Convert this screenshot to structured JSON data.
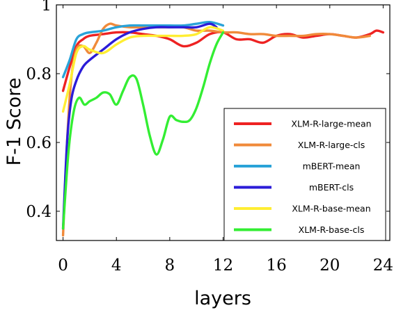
{
  "chart_data": {
    "type": "line",
    "title": "",
    "xlabel": "layers",
    "ylabel": "F-1 Score",
    "xlim": [
      -0.5,
      24.5
    ],
    "ylim": [
      0.315,
      1.0
    ],
    "xticks": [
      0,
      4,
      8,
      12,
      16,
      20,
      24
    ],
    "yticks": [
      0.4,
      0.6,
      0.8,
      1
    ],
    "ytick_labels": [
      "0.4",
      "0.6",
      "0.8",
      "1"
    ],
    "grid": false,
    "legend_position": "bottom-right",
    "series": [
      {
        "name": "XLM-R-large-mean",
        "color": "#ee2222",
        "x": [
          0,
          0.5,
          1,
          1.5,
          2,
          3,
          4,
          5,
          6,
          7,
          8,
          9,
          10,
          11,
          12,
          13,
          14,
          15,
          16,
          17,
          18,
          19,
          20,
          21,
          22,
          23,
          23.5,
          24
        ],
        "y": [
          0.75,
          0.82,
          0.88,
          0.9,
          0.91,
          0.915,
          0.92,
          0.92,
          0.915,
          0.91,
          0.9,
          0.88,
          0.89,
          0.915,
          0.92,
          0.9,
          0.9,
          0.89,
          0.91,
          0.915,
          0.905,
          0.91,
          0.915,
          0.91,
          0.905,
          0.915,
          0.925,
          0.92
        ]
      },
      {
        "name": "XLM-R-large-cls",
        "color": "#f08a3a",
        "x": [
          0,
          0.3,
          0.6,
          1,
          1.5,
          2,
          2.5,
          3,
          3.5,
          4,
          5,
          6,
          7,
          8,
          9,
          10,
          11,
          12,
          13,
          14,
          15,
          16,
          17,
          18,
          19,
          20,
          21,
          22,
          23
        ],
        "y": [
          0.33,
          0.6,
          0.78,
          0.87,
          0.88,
          0.86,
          0.89,
          0.93,
          0.945,
          0.94,
          0.935,
          0.935,
          0.935,
          0.935,
          0.935,
          0.925,
          0.925,
          0.92,
          0.92,
          0.915,
          0.915,
          0.91,
          0.91,
          0.91,
          0.915,
          0.915,
          0.91,
          0.905,
          0.91
        ]
      },
      {
        "name": "mBERT-mean",
        "color": "#2aa3d8",
        "x": [
          0,
          0.5,
          1,
          1.5,
          2,
          3,
          4,
          5,
          6,
          7,
          8,
          9,
          10,
          11,
          12
        ],
        "y": [
          0.79,
          0.84,
          0.9,
          0.915,
          0.92,
          0.925,
          0.935,
          0.94,
          0.94,
          0.94,
          0.94,
          0.94,
          0.945,
          0.95,
          0.94
        ]
      },
      {
        "name": "mBERT-cls",
        "color": "#2b1cd8",
        "x": [
          0,
          0.3,
          0.6,
          1,
          1.5,
          2,
          3,
          4,
          5,
          6,
          7,
          8,
          9,
          10,
          11,
          11.5
        ],
        "y": [
          0.35,
          0.6,
          0.72,
          0.78,
          0.82,
          0.84,
          0.87,
          0.9,
          0.92,
          0.93,
          0.935,
          0.935,
          0.935,
          0.935,
          0.945,
          0.935
        ]
      },
      {
        "name": "XLM-R-base-mean",
        "color": "#ffee33",
        "x": [
          0,
          0.5,
          1,
          1.5,
          2,
          3,
          4,
          5,
          6,
          7,
          8,
          9,
          10,
          11,
          12
        ],
        "y": [
          0.69,
          0.77,
          0.86,
          0.88,
          0.87,
          0.86,
          0.885,
          0.905,
          0.91,
          0.91,
          0.91,
          0.91,
          0.915,
          0.935,
          0.925
        ]
      },
      {
        "name": "XLM-R-base-cls",
        "color": "#33ee33",
        "x": [
          0,
          0.4,
          0.8,
          1.2,
          1.6,
          2,
          2.5,
          3,
          3.5,
          4,
          4.5,
          5,
          5.5,
          6,
          6.5,
          7,
          7.5,
          8,
          8.5,
          9,
          9.5,
          10,
          10.5,
          11,
          11.5,
          12
        ],
        "y": [
          0.35,
          0.57,
          0.69,
          0.73,
          0.71,
          0.72,
          0.73,
          0.745,
          0.74,
          0.71,
          0.75,
          0.79,
          0.785,
          0.71,
          0.62,
          0.565,
          0.61,
          0.675,
          0.665,
          0.66,
          0.665,
          0.7,
          0.76,
          0.83,
          0.885,
          0.92
        ]
      }
    ]
  }
}
